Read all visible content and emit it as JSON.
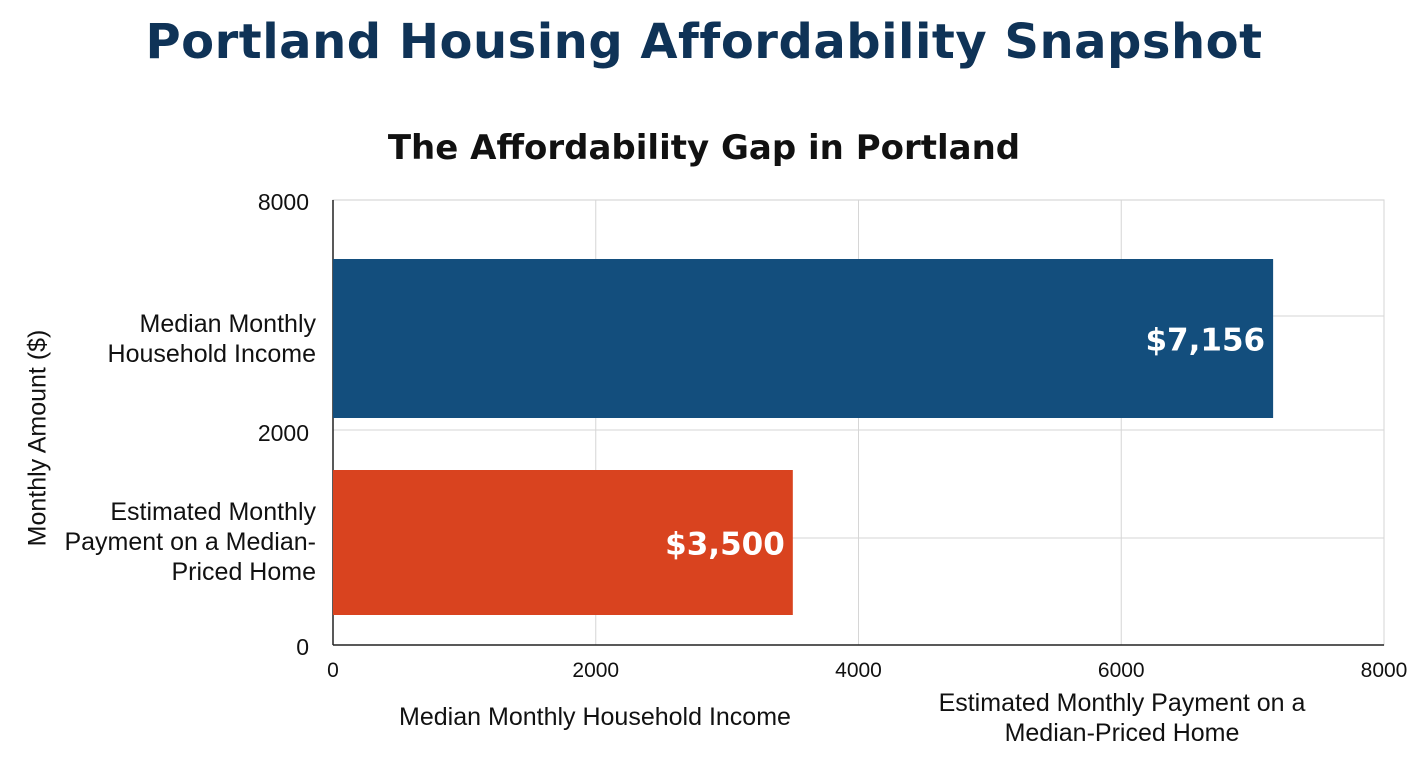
{
  "header": {
    "title": "Portland Housing Affordability Snapshot"
  },
  "chart_data": {
    "type": "bar",
    "orientation": "horizontal",
    "title": "The Affordability Gap in Portland",
    "ylabel": "Monthly Amount ($)",
    "categories": [
      "Median Monthly Household Income",
      "Estimated Monthly Payment on a Median-Priced Home"
    ],
    "values": [
      7156,
      3500
    ],
    "value_labels": [
      "$7,156",
      "$3,500"
    ],
    "colors": [
      "#134e7d",
      "#d9431f"
    ],
    "xlim": [
      0,
      8000
    ],
    "x_ticks": [
      "0",
      "2000",
      "4000",
      "6000",
      "8000"
    ],
    "y_ticks": [
      "8000",
      "2000",
      "0"
    ],
    "x_captions": [
      "Median Monthly Household Income",
      "Estimated Monthly Payment on a Median-Priced Home"
    ],
    "grid": true
  }
}
